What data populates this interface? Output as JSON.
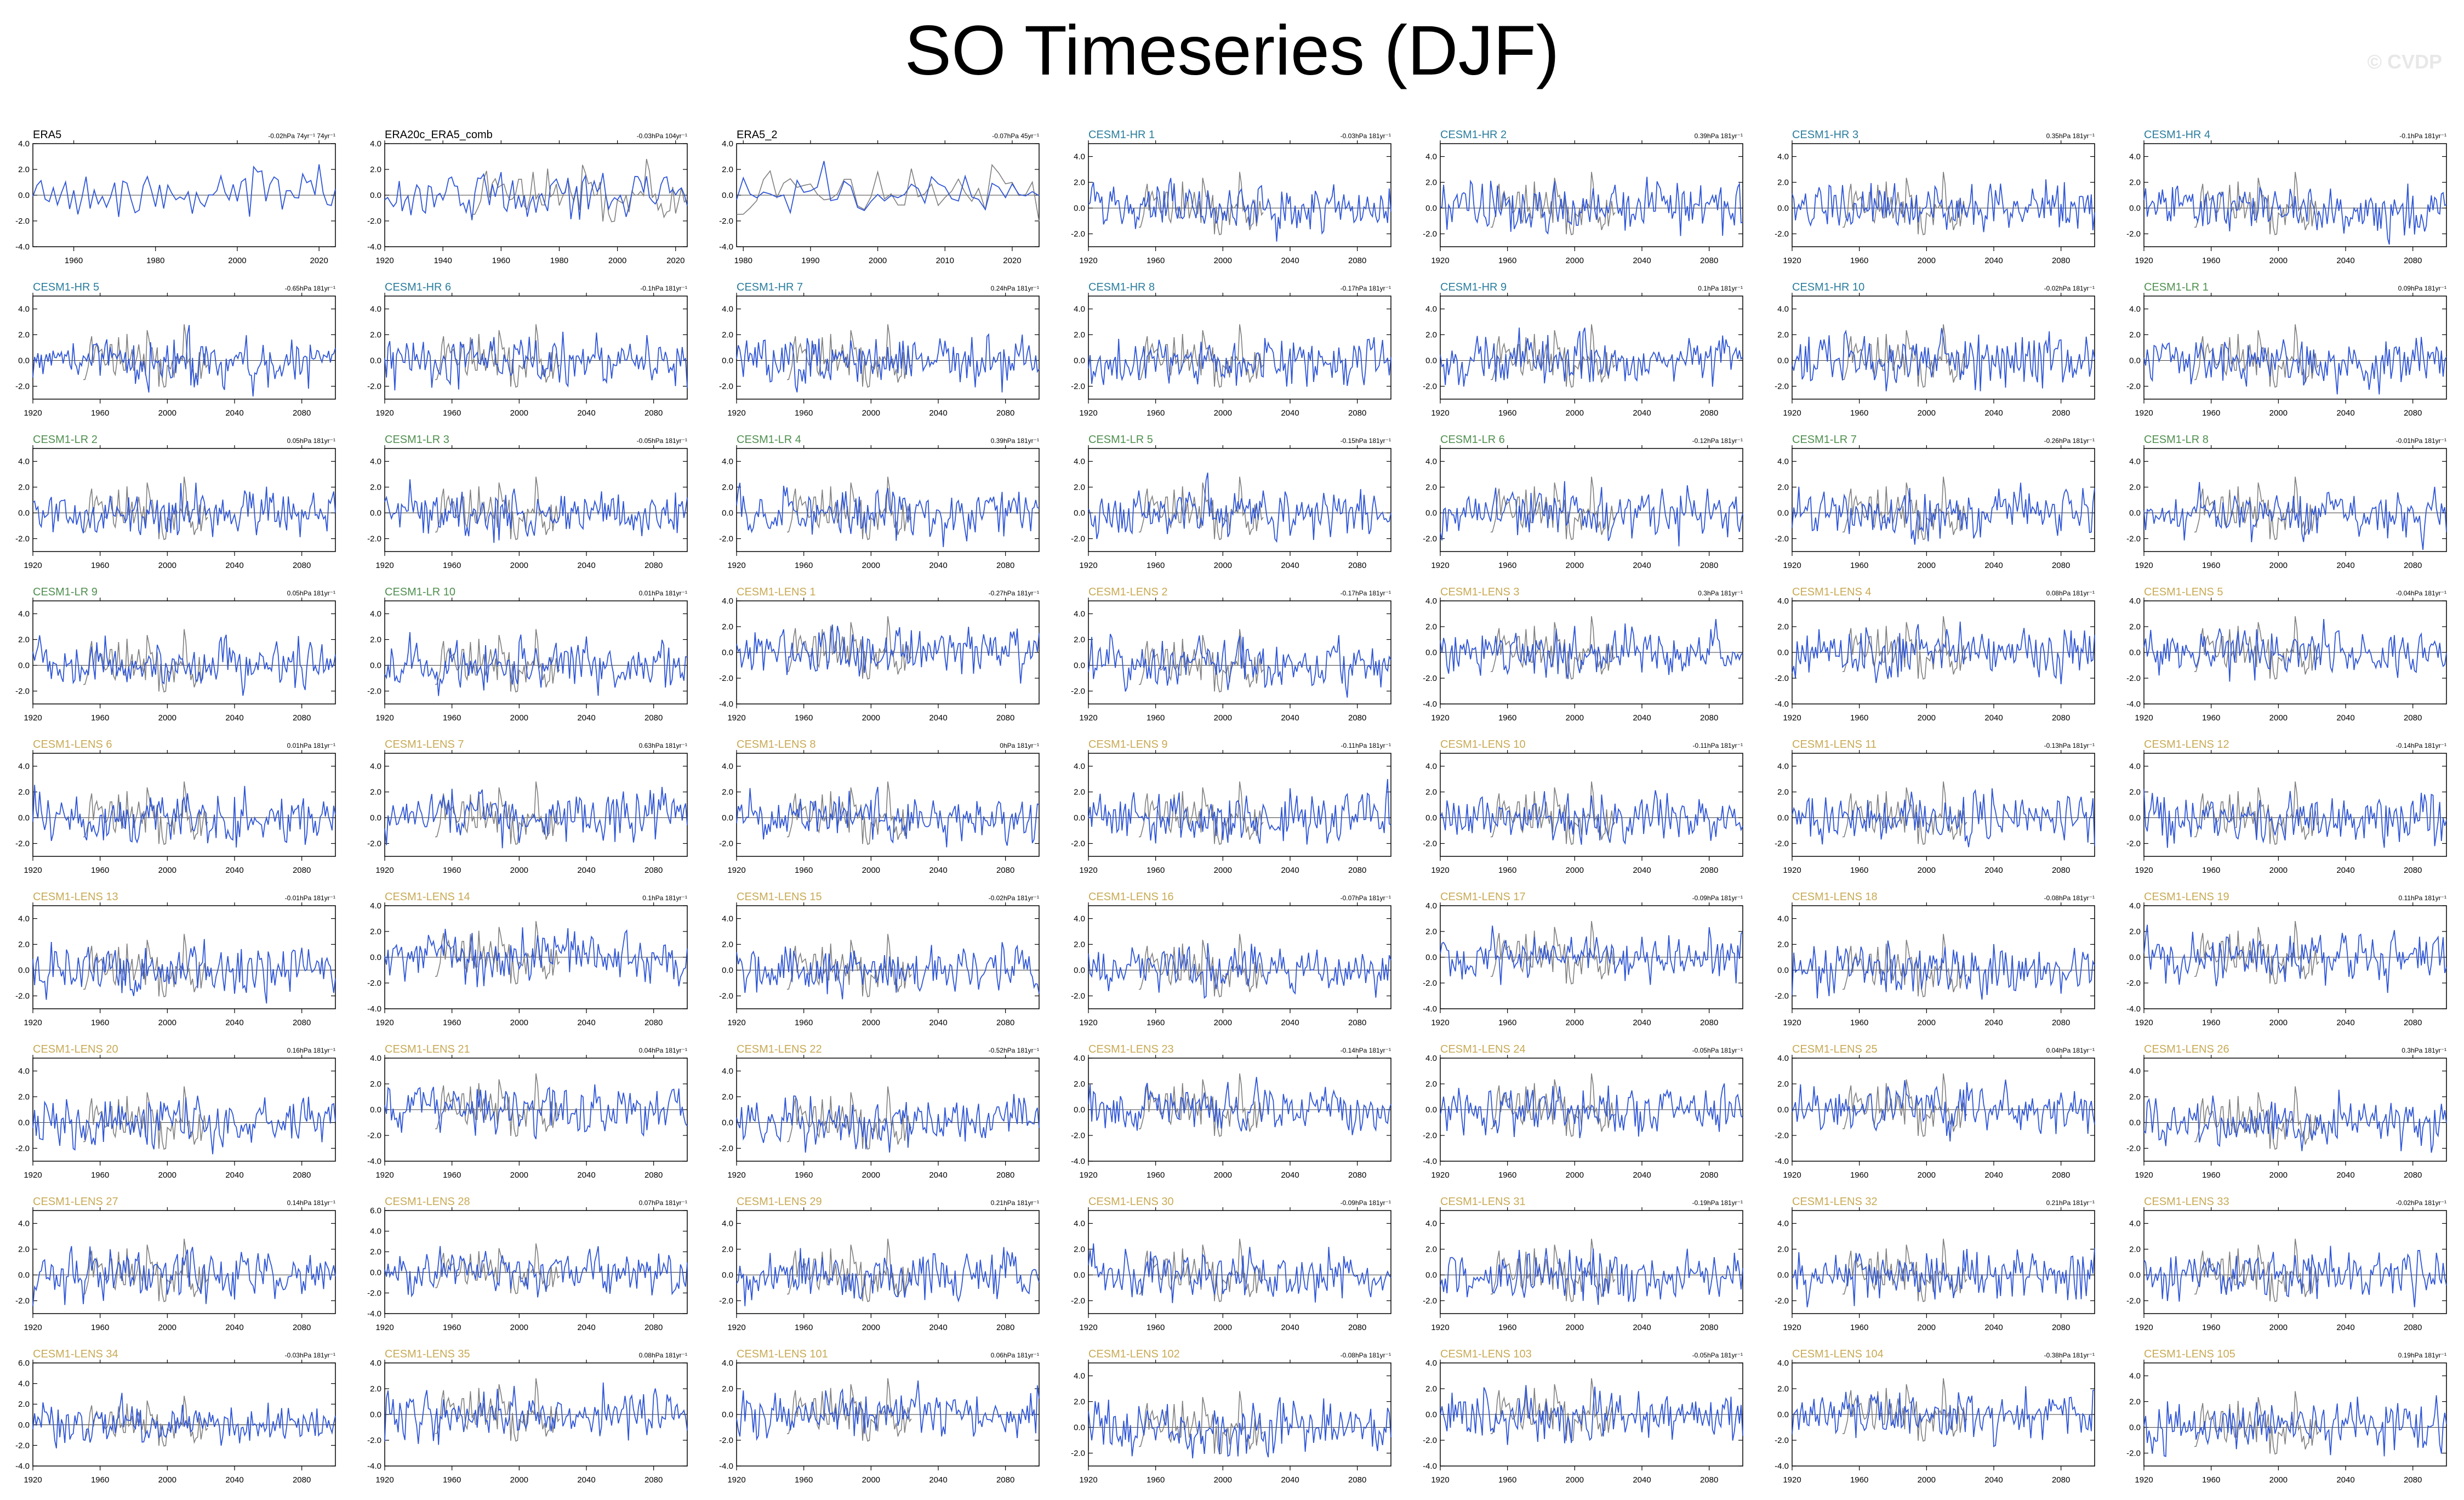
{
  "title": "SO Timeseries (DJF)",
  "watermark": "© CVDP",
  "colors": {
    "obs_series": "#2f56d6",
    "obs_ref": "#7f7f7f",
    "title_obs": "#000000",
    "title_hr": "#2a7d9d",
    "title_lr": "#4f8f4f",
    "title_lens": "#c8aa55"
  },
  "chart_data": {
    "type": "line",
    "grid": false,
    "legend": "none",
    "panels": [
      {
        "name": "ERA5",
        "group": "obs",
        "trend": "-0.02hPa 74yr⁻¹ 74yr⁻¹",
        "xlim": [
          1950,
          2024
        ],
        "ylim": [
          -4,
          4
        ],
        "xticks": [
          1960,
          1980,
          2000,
          2020
        ],
        "yticks": [
          4.0,
          2.0,
          0.0,
          -2.0,
          -4.0
        ]
      },
      {
        "name": "ERA20c_ERA5_comb",
        "group": "obs",
        "trend": "-0.03hPa 104yr⁻¹",
        "xlim": [
          1920,
          2024
        ],
        "ylim": [
          -4,
          4
        ],
        "xticks": [
          1920,
          1940,
          1960,
          1980,
          2000,
          2020
        ],
        "yticks": [
          4.0,
          2.0,
          0.0,
          -2.0,
          -4.0
        ]
      },
      {
        "name": "ERA5_2",
        "group": "obs",
        "trend": "-0.07hPa 45yr⁻¹",
        "xlim": [
          1979,
          2024
        ],
        "ylim": [
          -4,
          4
        ],
        "xticks": [
          1980,
          1990,
          2000,
          2010,
          2020
        ],
        "yticks": [
          4.0,
          2.0,
          0.0,
          -2.0,
          -4.0
        ]
      },
      {
        "name": "CESM1-HR 1",
        "group": "hr",
        "trend": "-0.03hPa 181yr⁻¹"
      },
      {
        "name": "CESM1-HR 2",
        "group": "hr",
        "trend": "0.39hPa 181yr⁻¹"
      },
      {
        "name": "CESM1-HR 3",
        "group": "hr",
        "trend": "0.35hPa 181yr⁻¹"
      },
      {
        "name": "CESM1-HR 4",
        "group": "hr",
        "trend": "-0.1hPa 181yr⁻¹"
      },
      {
        "name": "CESM1-HR 5",
        "group": "hr",
        "trend": "-0.65hPa 181yr⁻¹"
      },
      {
        "name": "CESM1-HR 6",
        "group": "hr",
        "trend": "-0.1hPa 181yr⁻¹"
      },
      {
        "name": "CESM1-HR 7",
        "group": "hr",
        "trend": "0.24hPa 181yr⁻¹"
      },
      {
        "name": "CESM1-HR 8",
        "group": "hr",
        "trend": "-0.17hPa 181yr⁻¹"
      },
      {
        "name": "CESM1-HR 9",
        "group": "hr",
        "trend": "0.1hPa 181yr⁻¹"
      },
      {
        "name": "CESM1-HR 10",
        "group": "hr",
        "trend": "-0.02hPa 181yr⁻¹"
      },
      {
        "name": "CESM1-LR 1",
        "group": "lr",
        "trend": "0.09hPa 181yr⁻¹"
      },
      {
        "name": "CESM1-LR 2",
        "group": "lr",
        "trend": "0.05hPa 181yr⁻¹"
      },
      {
        "name": "CESM1-LR 3",
        "group": "lr",
        "trend": "-0.05hPa 181yr⁻¹"
      },
      {
        "name": "CESM1-LR 4",
        "group": "lr",
        "trend": "0.39hPa 181yr⁻¹"
      },
      {
        "name": "CESM1-LR 5",
        "group": "lr",
        "trend": "-0.15hPa 181yr⁻¹"
      },
      {
        "name": "CESM1-LR 6",
        "group": "lr",
        "trend": "-0.12hPa 181yr⁻¹"
      },
      {
        "name": "CESM1-LR 7",
        "group": "lr",
        "trend": "-0.26hPa 181yr⁻¹"
      },
      {
        "name": "CESM1-LR 8",
        "group": "lr",
        "trend": "-0.01hPa 181yr⁻¹"
      },
      {
        "name": "CESM1-LR 9",
        "group": "lr",
        "trend": "0.05hPa 181yr⁻¹"
      },
      {
        "name": "CESM1-LR 10",
        "group": "lr",
        "trend": "0.01hPa 181yr⁻¹"
      },
      {
        "name": "CESM1-LENS 1",
        "group": "lens",
        "trend": "-0.27hPa 181yr⁻¹",
        "ylim": [
          -4,
          4
        ],
        "yticks": [
          4.0,
          2.0,
          0.0,
          -2.0,
          -4.0
        ]
      },
      {
        "name": "CESM1-LENS 2",
        "group": "lens",
        "trend": "-0.17hPa 181yr⁻¹"
      },
      {
        "name": "CESM1-LENS 3",
        "group": "lens",
        "trend": "0.3hPa 181yr⁻¹",
        "ylim": [
          -4,
          4
        ],
        "yticks": [
          4.0,
          2.0,
          0.0,
          -2.0,
          -4.0
        ]
      },
      {
        "name": "CESM1-LENS 4",
        "group": "lens",
        "trend": "0.08hPa 181yr⁻¹",
        "ylim": [
          -4,
          4
        ],
        "yticks": [
          4.0,
          2.0,
          0.0,
          -2.0,
          -4.0
        ]
      },
      {
        "name": "CESM1-LENS 5",
        "group": "lens",
        "trend": "-0.04hPa 181yr⁻¹",
        "ylim": [
          -4,
          4
        ],
        "yticks": [
          4.0,
          2.0,
          0.0,
          -2.0,
          -4.0
        ]
      },
      {
        "name": "CESM1-LENS 6",
        "group": "lens",
        "trend": "0.01hPa 181yr⁻¹"
      },
      {
        "name": "CESM1-LENS 7",
        "group": "lens",
        "trend": "0.63hPa 181yr⁻¹"
      },
      {
        "name": "CESM1-LENS 8",
        "group": "lens",
        "trend": "0hPa 181yr⁻¹"
      },
      {
        "name": "CESM1-LENS 9",
        "group": "lens",
        "trend": "-0.11hPa 181yr⁻¹"
      },
      {
        "name": "CESM1-LENS 10",
        "group": "lens",
        "trend": "-0.11hPa 181yr⁻¹"
      },
      {
        "name": "CESM1-LENS 11",
        "group": "lens",
        "trend": "-0.13hPa 181yr⁻¹"
      },
      {
        "name": "CESM1-LENS 12",
        "group": "lens",
        "trend": "-0.14hPa 181yr⁻¹"
      },
      {
        "name": "CESM1-LENS 13",
        "group": "lens",
        "trend": "-0.01hPa 181yr⁻¹"
      },
      {
        "name": "CESM1-LENS 14",
        "group": "lens",
        "trend": "0.1hPa 181yr⁻¹",
        "ylim": [
          -4,
          4
        ],
        "yticks": [
          4.0,
          2.0,
          0.0,
          -2.0,
          -4.0
        ]
      },
      {
        "name": "CESM1-LENS 15",
        "group": "lens",
        "trend": "-0.02hPa 181yr⁻¹"
      },
      {
        "name": "CESM1-LENS 16",
        "group": "lens",
        "trend": "-0.07hPa 181yr⁻¹"
      },
      {
        "name": "CESM1-LENS 17",
        "group": "lens",
        "trend": "-0.09hPa 181yr⁻¹",
        "ylim": [
          -4,
          4
        ],
        "yticks": [
          4.0,
          2.0,
          0.0,
          -2.0,
          -4.0
        ]
      },
      {
        "name": "CESM1-LENS 18",
        "group": "lens",
        "trend": "-0.08hPa 181yr⁻¹"
      },
      {
        "name": "CESM1-LENS 19",
        "group": "lens",
        "trend": "0.11hPa 181yr⁻¹",
        "ylim": [
          -4,
          4
        ],
        "yticks": [
          4.0,
          2.0,
          0.0,
          -2.0,
          -4.0
        ]
      },
      {
        "name": "CESM1-LENS 20",
        "group": "lens",
        "trend": "0.16hPa 181yr⁻¹"
      },
      {
        "name": "CESM1-LENS 21",
        "group": "lens",
        "trend": "0.04hPa 181yr⁻¹",
        "ylim": [
          -4,
          4
        ],
        "yticks": [
          4.0,
          2.0,
          0.0,
          -2.0,
          -4.0
        ]
      },
      {
        "name": "CESM1-LENS 22",
        "group": "lens",
        "trend": "-0.52hPa 181yr⁻¹"
      },
      {
        "name": "CESM1-LENS 23",
        "group": "lens",
        "trend": "-0.14hPa 181yr⁻¹",
        "ylim": [
          -4,
          4
        ],
        "yticks": [
          4.0,
          2.0,
          0.0,
          -2.0,
          -4.0
        ]
      },
      {
        "name": "CESM1-LENS 24",
        "group": "lens",
        "trend": "-0.05hPa 181yr⁻¹",
        "ylim": [
          -4,
          4
        ],
        "yticks": [
          4.0,
          2.0,
          0.0,
          -2.0,
          -4.0
        ]
      },
      {
        "name": "CESM1-LENS 25",
        "group": "lens",
        "trend": "0.04hPa 181yr⁻¹",
        "ylim": [
          -4,
          4
        ],
        "yticks": [
          4.0,
          2.0,
          0.0,
          -2.0,
          -4.0
        ]
      },
      {
        "name": "CESM1-LENS 26",
        "group": "lens",
        "trend": "0.3hPa 181yr⁻¹"
      },
      {
        "name": "CESM1-LENS 27",
        "group": "lens",
        "trend": "0.14hPa 181yr⁻¹"
      },
      {
        "name": "CESM1-LENS 28",
        "group": "lens",
        "trend": "0.07hPa 181yr⁻¹",
        "ylim": [
          -4,
          6
        ],
        "yticks": [
          6.0,
          4.0,
          2.0,
          0.0,
          -2.0,
          -4.0
        ]
      },
      {
        "name": "CESM1-LENS 29",
        "group": "lens",
        "trend": "0.21hPa 181yr⁻¹"
      },
      {
        "name": "CESM1-LENS 30",
        "group": "lens",
        "trend": "-0.09hPa 181yr⁻¹"
      },
      {
        "name": "CESM1-LENS 31",
        "group": "lens",
        "trend": "-0.19hPa 181yr⁻¹"
      },
      {
        "name": "CESM1-LENS 32",
        "group": "lens",
        "trend": "0.21hPa 181yr⁻¹"
      },
      {
        "name": "CESM1-LENS 33",
        "group": "lens",
        "trend": "-0.02hPa 181yr⁻¹"
      },
      {
        "name": "CESM1-LENS 34",
        "group": "lens",
        "trend": "-0.03hPa 181yr⁻¹",
        "ylim": [
          -4,
          6
        ],
        "yticks": [
          6.0,
          4.0,
          2.0,
          0.0,
          -2.0,
          -4.0
        ]
      },
      {
        "name": "CESM1-LENS 35",
        "group": "lens",
        "trend": "0.08hPa 181yr⁻¹",
        "ylim": [
          -4,
          4
        ],
        "yticks": [
          4.0,
          2.0,
          0.0,
          -2.0,
          -4.0
        ]
      },
      {
        "name": "CESM1-LENS 101",
        "group": "lens",
        "trend": "0.06hPa 181yr⁻¹",
        "ylim": [
          -4,
          4
        ],
        "yticks": [
          4.0,
          2.0,
          0.0,
          -2.0,
          -4.0
        ]
      },
      {
        "name": "CESM1-LENS 102",
        "group": "lens",
        "trend": "-0.08hPa 181yr⁻¹"
      },
      {
        "name": "CESM1-LENS 103",
        "group": "lens",
        "trend": "-0.05hPa 181yr⁻¹",
        "ylim": [
          -4,
          4
        ],
        "yticks": [
          4.0,
          2.0,
          0.0,
          -2.0,
          -4.0
        ]
      },
      {
        "name": "CESM1-LENS 104",
        "group": "lens",
        "trend": "-0.38hPa 181yr⁻¹",
        "ylim": [
          -4,
          4
        ],
        "yticks": [
          4.0,
          2.0,
          0.0,
          -2.0,
          -4.0
        ]
      },
      {
        "name": "CESM1-LENS 105",
        "group": "lens",
        "trend": "0.19hPa 181yr⁻¹"
      }
    ],
    "model_defaults": {
      "xlim": [
        1920,
        2100
      ],
      "xticks": [
        1920,
        1960,
        2000,
        2040,
        2080
      ],
      "ylim": [
        -3,
        5
      ],
      "yticks": [
        4.0,
        2.0,
        0.0,
        -2.0
      ]
    }
  }
}
